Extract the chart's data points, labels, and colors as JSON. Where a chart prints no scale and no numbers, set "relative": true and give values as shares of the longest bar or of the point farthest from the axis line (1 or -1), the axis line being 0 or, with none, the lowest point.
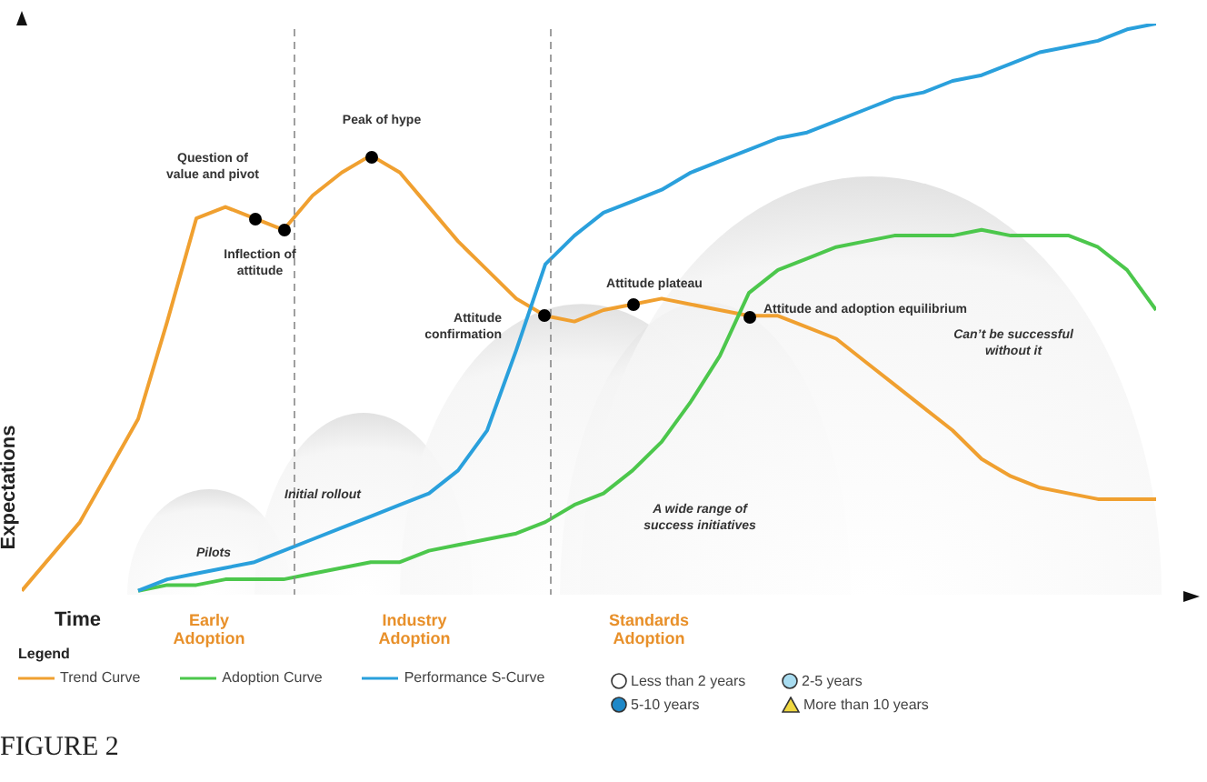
{
  "chart_data": {
    "type": "line",
    "title": "FIGURE 2",
    "xlabel": "Time",
    "ylabel": "Expectations",
    "legend_title": "Legend",
    "legend": "bottom",
    "relative": true,
    "categories": [
      null,
      null,
      null,
      null,
      null,
      null,
      null,
      null,
      null,
      null,
      null,
      null,
      null,
      null,
      null,
      null,
      null,
      null,
      null,
      null,
      null,
      null,
      null,
      null,
      null,
      null,
      null,
      null,
      null,
      null,
      null,
      null,
      null,
      null,
      null,
      null,
      null,
      null,
      null,
      null
    ],
    "series": [
      {
        "name": "Trend Curve",
        "color": "#f0a030",
        "values": [
          0.01,
          0.07,
          0.13,
          0.22,
          0.31,
          0.48,
          0.66,
          0.68,
          0.66,
          0.64,
          0.7,
          0.74,
          0.77,
          0.74,
          0.68,
          0.62,
          0.57,
          0.52,
          0.49,
          0.48,
          0.5,
          0.51,
          0.52,
          0.51,
          0.5,
          0.49,
          0.49,
          0.47,
          0.45,
          0.41,
          0.37,
          0.33,
          0.29,
          0.24,
          0.21,
          0.19,
          0.18,
          0.17,
          0.17,
          0.17
        ]
      },
      {
        "name": "Adoption Curve",
        "color": "#4cc74c",
        "values": [
          null,
          null,
          null,
          null,
          0.01,
          0.02,
          0.02,
          0.03,
          0.03,
          0.03,
          0.04,
          0.05,
          0.06,
          0.06,
          0.08,
          0.09,
          0.1,
          0.11,
          0.13,
          0.16,
          0.18,
          0.22,
          0.27,
          0.34,
          0.42,
          0.53,
          0.57,
          0.59,
          0.61,
          0.62,
          0.63,
          0.63,
          0.63,
          0.64,
          0.63,
          0.63,
          0.63,
          0.61,
          0.57,
          0.5
        ]
      },
      {
        "name": "Performance S-Curve",
        "color": "#2aa0dc",
        "values": [
          null,
          null,
          null,
          null,
          0.01,
          0.03,
          0.04,
          0.05,
          0.06,
          0.08,
          0.1,
          0.12,
          0.14,
          0.16,
          0.18,
          0.22,
          0.29,
          0.43,
          0.58,
          0.63,
          0.67,
          0.69,
          0.71,
          0.74,
          0.76,
          0.78,
          0.8,
          0.81,
          0.83,
          0.85,
          0.87,
          0.88,
          0.9,
          0.91,
          0.93,
          0.95,
          0.96,
          0.97,
          0.99,
          1
        ]
      }
    ],
    "annotations": [
      "Question of value and pivot",
      "Inflection of attitude",
      "Peak of hype",
      "Attitude confirmation",
      "Attitude plateau",
      "Attitude and adoption equilibrium",
      "Can’t be successful without it",
      "Pilots",
      "Initial rollout",
      "A wide range of success initiatives",
      "Early Adoption",
      "Industry Adoption",
      "Standards Adoption",
      "Less than 2 years",
      "2-5 years",
      "5-10 years",
      "More than 10 years"
    ]
  }
}
